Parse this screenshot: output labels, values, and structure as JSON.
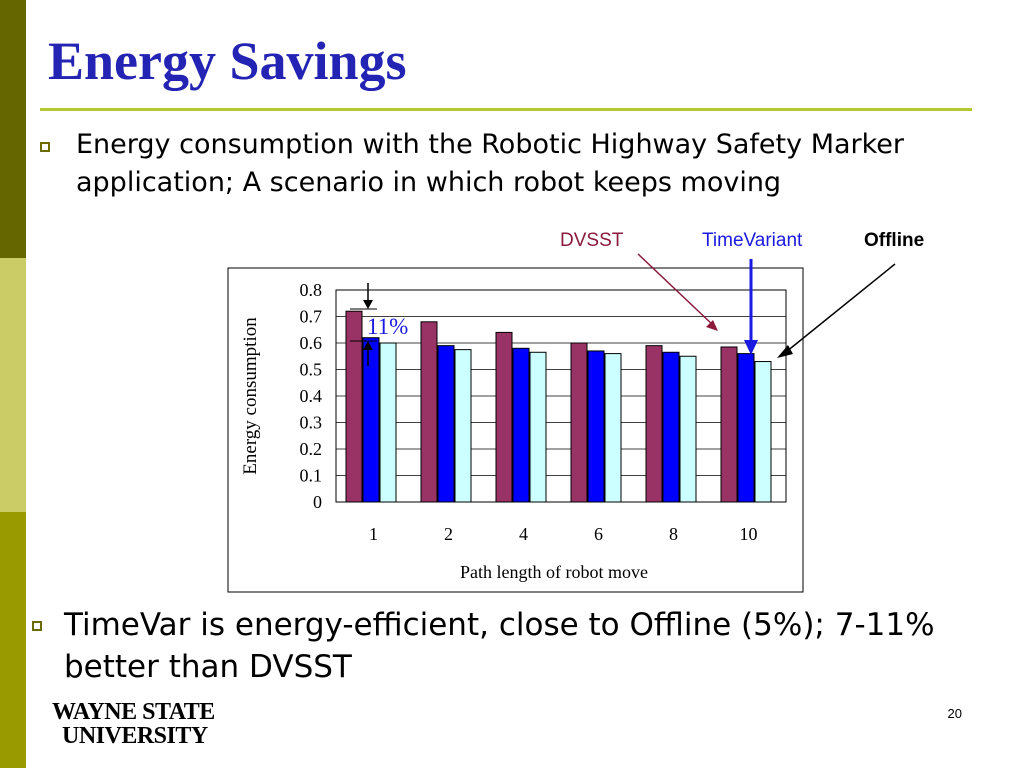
{
  "slide": {
    "title": "Energy Savings",
    "bullets": [
      "Energy consumption with the Robotic Highway Safety Marker application; A scenario in which robot keeps moving",
      "TimeVar is energy-efficient, close to Offline (5%); 7-11% better than DVSST"
    ],
    "page_number": "20",
    "logo_line1": "WAYNE STATE",
    "logo_line2": "UNIVERSITY"
  },
  "colors": {
    "title": "#2323b4",
    "rule": "#b4c832",
    "bullet": "#6b6b00",
    "sidebar_dark": "#666600",
    "sidebar_mid": "#999900",
    "sidebar_light": "#cccc66"
  },
  "legend": {
    "dvsst": {
      "label": "DVSST",
      "color": "#8b1a3b"
    },
    "timevariant": {
      "label": "TimeVariant",
      "color": "#1a1ae0"
    },
    "offline": {
      "label": "Offline",
      "color": "#000000"
    }
  },
  "annotation": {
    "label": "11%",
    "color": "#1a1ae0"
  },
  "chart_data": {
    "type": "bar",
    "categories": [
      "1",
      "2",
      "4",
      "6",
      "8",
      "10"
    ],
    "series": [
      {
        "name": "DVSST",
        "color": "#993366",
        "values": [
          0.72,
          0.68,
          0.64,
          0.6,
          0.59,
          0.585
        ]
      },
      {
        "name": "TimeVariant",
        "color": "#0000ff",
        "values": [
          0.62,
          0.59,
          0.58,
          0.57,
          0.565,
          0.56
        ]
      },
      {
        "name": "Offline",
        "color": "#ccffff",
        "values": [
          0.6,
          0.575,
          0.565,
          0.56,
          0.55,
          0.53
        ]
      }
    ],
    "xlabel": "Path length of robot move",
    "ylabel": "Energy consumption",
    "ylim": [
      0,
      0.8
    ],
    "yticks": [
      "0",
      "0.1",
      "0.2",
      "0.3",
      "0.4",
      "0.5",
      "0.6",
      "0.7",
      "0.8"
    ],
    "grid": true
  }
}
